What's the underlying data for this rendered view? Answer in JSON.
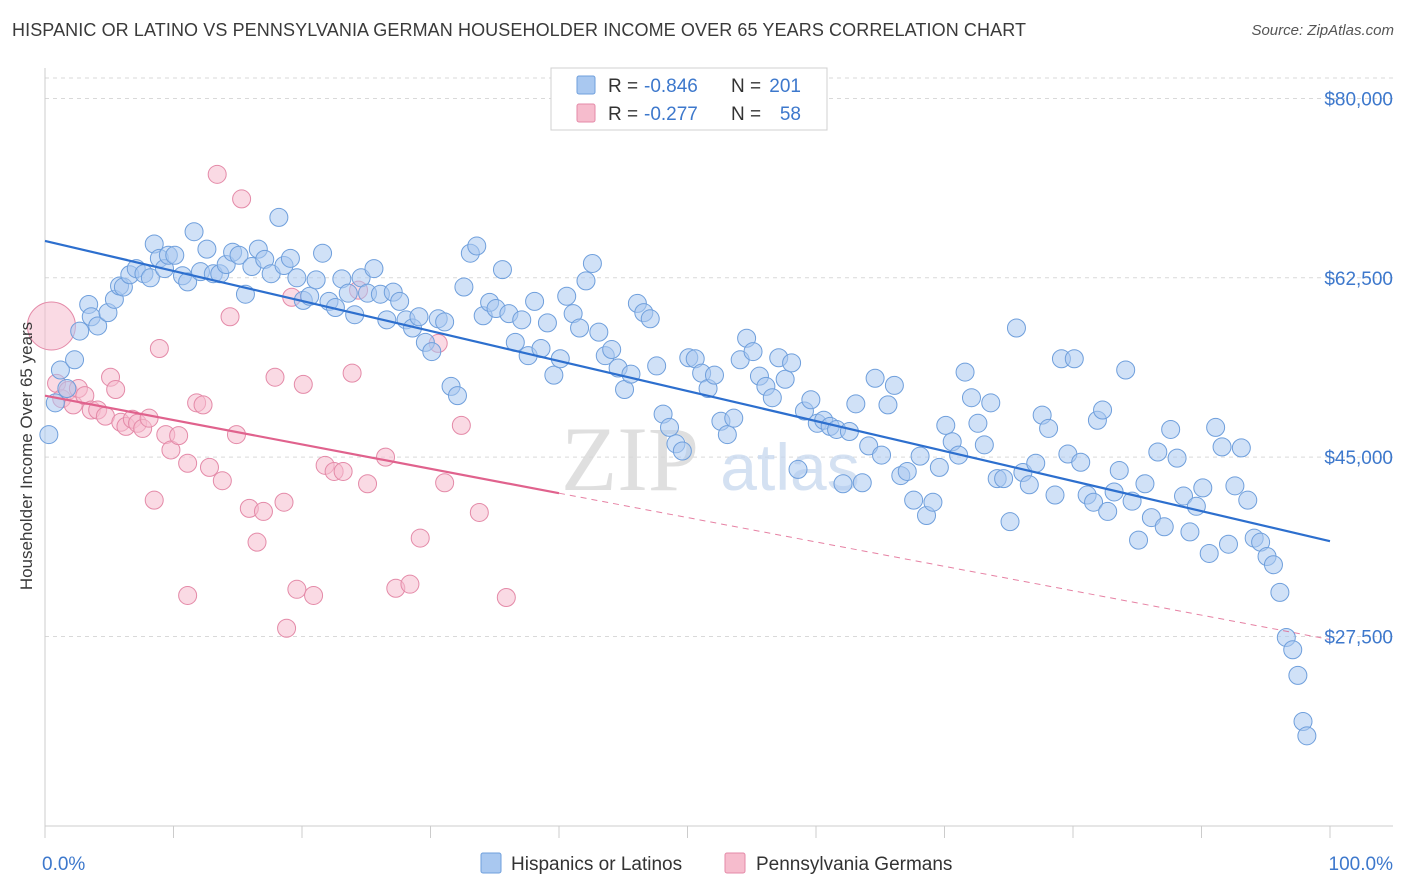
{
  "title": "HISPANIC OR LATINO VS PENNSYLVANIA GERMAN HOUSEHOLDER INCOME OVER 65 YEARS CORRELATION CHART",
  "source": "Source: ZipAtlas.com",
  "watermark": {
    "zip": "ZIP",
    "atlas": "atlas"
  },
  "colors": {
    "blue_fill": "#a9c8f0",
    "blue_stroke": "#6f9fdc",
    "blue_line": "#2d6fce",
    "pink_fill": "#f6bccd",
    "pink_stroke": "#e48aa8",
    "pink_line": "#e0628d",
    "axis_text": "#3d78cc",
    "grid": "#d9d9d9"
  },
  "legend_box": {
    "rows": [
      {
        "r_label": "R =",
        "r_value": "-0.846",
        "n_label": "N =",
        "n_value": "201",
        "color": "blue"
      },
      {
        "r_label": "R =",
        "r_value": "-0.277",
        "n_label": "N =",
        "n_value": "58",
        "color": "pink"
      }
    ]
  },
  "chart_data": {
    "type": "scatter",
    "title": "HISPANIC OR LATINO VS PENNSYLVANIA GERMAN HOUSEHOLDER INCOME OVER 65 YEARS CORRELATION CHART",
    "xlabel": "",
    "ylabel": "Householder Income Over 65 years",
    "x_tick_labels": [
      "0.0%",
      "100.0%"
    ],
    "y_tick_labels": [
      "$80,000",
      "$62,500",
      "$45,000",
      "$27,500"
    ],
    "y_ticks": [
      80000,
      62500,
      45000,
      27500
    ],
    "xlim": [
      0,
      100
    ],
    "ylim": [
      9000,
      82000
    ],
    "grid": true,
    "legend_position": "bottom-center",
    "series": [
      {
        "name": "Hispanics or Latinos",
        "color": "blue",
        "trend": {
          "x0": 0,
          "y0": 66100,
          "x1": 100,
          "y1": 36800,
          "dashed_until": 100
        },
        "points": [
          [
            0.3,
            47200
          ],
          [
            0.8,
            50300
          ],
          [
            1.2,
            53500
          ],
          [
            1.7,
            51700
          ],
          [
            2.3,
            54500
          ],
          [
            2.7,
            57300
          ],
          [
            3.4,
            59900
          ],
          [
            3.6,
            58700
          ],
          [
            4.1,
            57800
          ],
          [
            4.9,
            59100
          ],
          [
            5.4,
            60400
          ],
          [
            5.8,
            61700
          ],
          [
            6.1,
            61600
          ],
          [
            6.6,
            62800
          ],
          [
            7.1,
            63400
          ],
          [
            7.7,
            62900
          ],
          [
            8.2,
            62500
          ],
          [
            8.5,
            65800
          ],
          [
            8.9,
            64400
          ],
          [
            9.3,
            63400
          ],
          [
            9.6,
            64700
          ],
          [
            10.1,
            64700
          ],
          [
            10.7,
            62700
          ],
          [
            11.1,
            62100
          ],
          [
            11.6,
            67000
          ],
          [
            12.1,
            63100
          ],
          [
            12.6,
            65300
          ],
          [
            13.1,
            62900
          ],
          [
            13.6,
            62900
          ],
          [
            14.1,
            63800
          ],
          [
            14.6,
            65000
          ],
          [
            15.1,
            64700
          ],
          [
            15.6,
            60900
          ],
          [
            16.1,
            63600
          ],
          [
            16.6,
            65300
          ],
          [
            17.1,
            64300
          ],
          [
            17.6,
            62900
          ],
          [
            18.2,
            68400
          ],
          [
            18.6,
            63700
          ],
          [
            19.1,
            64400
          ],
          [
            19.6,
            62500
          ],
          [
            20.1,
            60300
          ],
          [
            20.6,
            60700
          ],
          [
            21.1,
            62300
          ],
          [
            21.6,
            64900
          ],
          [
            22.1,
            60200
          ],
          [
            22.6,
            59600
          ],
          [
            23.1,
            62400
          ],
          [
            23.6,
            61000
          ],
          [
            24.1,
            58900
          ],
          [
            24.6,
            62500
          ],
          [
            25.1,
            61000
          ],
          [
            25.6,
            63400
          ],
          [
            26.1,
            60900
          ],
          [
            26.6,
            58400
          ],
          [
            27.1,
            61100
          ],
          [
            27.6,
            60200
          ],
          [
            28.1,
            58400
          ],
          [
            28.6,
            57600
          ],
          [
            29.1,
            58700
          ],
          [
            29.6,
            56200
          ],
          [
            30.1,
            55300
          ],
          [
            30.6,
            58500
          ],
          [
            31.1,
            58200
          ],
          [
            31.6,
            51900
          ],
          [
            32.1,
            51000
          ],
          [
            32.6,
            61600
          ],
          [
            33.1,
            64900
          ],
          [
            33.6,
            65600
          ],
          [
            34.1,
            58800
          ],
          [
            34.6,
            60100
          ],
          [
            35.1,
            59500
          ],
          [
            35.6,
            63300
          ],
          [
            36.1,
            59000
          ],
          [
            36.6,
            56200
          ],
          [
            37.1,
            58400
          ],
          [
            37.6,
            54900
          ],
          [
            38.1,
            60200
          ],
          [
            38.6,
            55600
          ],
          [
            39.1,
            58100
          ],
          [
            39.6,
            53000
          ],
          [
            40.1,
            54600
          ],
          [
            40.6,
            60700
          ],
          [
            41.1,
            59000
          ],
          [
            41.6,
            57600
          ],
          [
            42.1,
            62200
          ],
          [
            42.6,
            63900
          ],
          [
            43.1,
            57200
          ],
          [
            43.6,
            54900
          ],
          [
            44.1,
            55500
          ],
          [
            44.6,
            53700
          ],
          [
            45.1,
            51600
          ],
          [
            45.6,
            53100
          ],
          [
            46.1,
            60000
          ],
          [
            46.6,
            59100
          ],
          [
            47.1,
            58500
          ],
          [
            47.6,
            53900
          ],
          [
            48.1,
            49200
          ],
          [
            48.6,
            47900
          ],
          [
            49.1,
            46300
          ],
          [
            49.6,
            45600
          ],
          [
            50.1,
            54700
          ],
          [
            50.6,
            54600
          ],
          [
            51.1,
            53200
          ],
          [
            51.6,
            51700
          ],
          [
            52.1,
            53000
          ],
          [
            52.6,
            48500
          ],
          [
            53.1,
            47200
          ],
          [
            53.6,
            48800
          ],
          [
            54.1,
            54500
          ],
          [
            54.6,
            56600
          ],
          [
            55.1,
            55300
          ],
          [
            55.6,
            52900
          ],
          [
            56.1,
            51900
          ],
          [
            56.6,
            50800
          ],
          [
            57.1,
            54700
          ],
          [
            57.6,
            52600
          ],
          [
            58.1,
            54200
          ],
          [
            58.6,
            43800
          ],
          [
            59.1,
            49500
          ],
          [
            59.6,
            50600
          ],
          [
            60.1,
            48300
          ],
          [
            60.6,
            48600
          ],
          [
            61.1,
            48000
          ],
          [
            61.6,
            47700
          ],
          [
            62.1,
            42400
          ],
          [
            62.6,
            47500
          ],
          [
            63.1,
            50200
          ],
          [
            63.6,
            42500
          ],
          [
            64.1,
            46100
          ],
          [
            64.6,
            52700
          ],
          [
            65.1,
            45200
          ],
          [
            65.6,
            50100
          ],
          [
            66.1,
            52000
          ],
          [
            66.6,
            43200
          ],
          [
            67.1,
            43600
          ],
          [
            67.6,
            40800
          ],
          [
            68.1,
            45100
          ],
          [
            68.6,
            39300
          ],
          [
            69.1,
            40600
          ],
          [
            69.6,
            44000
          ],
          [
            70.1,
            48100
          ],
          [
            70.6,
            46500
          ],
          [
            71.1,
            45200
          ],
          [
            71.6,
            53300
          ],
          [
            72.1,
            50800
          ],
          [
            72.6,
            48300
          ],
          [
            73.1,
            46200
          ],
          [
            73.6,
            50300
          ],
          [
            74.1,
            42900
          ],
          [
            74.6,
            42900
          ],
          [
            75.1,
            38700
          ],
          [
            75.6,
            57600
          ],
          [
            76.1,
            43500
          ],
          [
            76.6,
            42300
          ],
          [
            77.1,
            44400
          ],
          [
            77.6,
            49100
          ],
          [
            78.1,
            47800
          ],
          [
            78.6,
            41300
          ],
          [
            79.1,
            54600
          ],
          [
            79.6,
            45300
          ],
          [
            80.1,
            54600
          ],
          [
            80.6,
            44500
          ],
          [
            81.1,
            41300
          ],
          [
            81.6,
            40600
          ],
          [
            81.9,
            48600
          ],
          [
            82.3,
            49600
          ],
          [
            82.7,
            39700
          ],
          [
            83.2,
            41600
          ],
          [
            83.6,
            43700
          ],
          [
            84.1,
            53500
          ],
          [
            84.6,
            40700
          ],
          [
            85.1,
            36900
          ],
          [
            85.6,
            42400
          ],
          [
            86.1,
            39100
          ],
          [
            86.6,
            45500
          ],
          [
            87.1,
            38200
          ],
          [
            87.6,
            47700
          ],
          [
            88.1,
            44900
          ],
          [
            88.6,
            41200
          ],
          [
            89.1,
            37700
          ],
          [
            89.6,
            40200
          ],
          [
            90.1,
            42000
          ],
          [
            90.6,
            35600
          ],
          [
            91.1,
            47900
          ],
          [
            91.6,
            46000
          ],
          [
            92.1,
            36500
          ],
          [
            92.6,
            42200
          ],
          [
            93.1,
            45900
          ],
          [
            93.6,
            40800
          ],
          [
            94.1,
            37100
          ],
          [
            94.6,
            36700
          ],
          [
            95.1,
            35300
          ],
          [
            95.6,
            34500
          ],
          [
            96.1,
            31800
          ],
          [
            96.6,
            27400
          ],
          [
            97.1,
            26200
          ],
          [
            97.5,
            23700
          ],
          [
            97.9,
            19200
          ],
          [
            98.2,
            17800
          ]
        ]
      },
      {
        "name": "Pennsylvania Germans",
        "color": "pink",
        "trend": {
          "x0": 0,
          "y0": 51000,
          "x1": 100,
          "y1": 27200,
          "solid_until": 40
        },
        "points": [
          [
            0.5,
            57800
          ],
          [
            0.9,
            52200
          ],
          [
            1.3,
            50700
          ],
          [
            1.8,
            51500
          ],
          [
            2.2,
            50100
          ],
          [
            2.6,
            51700
          ],
          [
            3.1,
            51000
          ],
          [
            3.6,
            49600
          ],
          [
            4.1,
            49600
          ],
          [
            4.7,
            49000
          ],
          [
            5.1,
            52800
          ],
          [
            5.5,
            51600
          ],
          [
            5.9,
            48400
          ],
          [
            6.3,
            48000
          ],
          [
            6.8,
            48700
          ],
          [
            7.2,
            48300
          ],
          [
            7.6,
            47800
          ],
          [
            8.1,
            48800
          ],
          [
            8.5,
            40800
          ],
          [
            8.9,
            55600
          ],
          [
            9.4,
            47200
          ],
          [
            9.8,
            45700
          ],
          [
            10.4,
            47100
          ],
          [
            11.1,
            44400
          ],
          [
            11.1,
            31500
          ],
          [
            11.8,
            50300
          ],
          [
            12.3,
            50100
          ],
          [
            12.8,
            44000
          ],
          [
            13.4,
            72600
          ],
          [
            13.8,
            42700
          ],
          [
            14.4,
            58700
          ],
          [
            14.9,
            47200
          ],
          [
            15.3,
            70200
          ],
          [
            15.9,
            40000
          ],
          [
            16.5,
            36700
          ],
          [
            17.0,
            39700
          ],
          [
            17.9,
            52800
          ],
          [
            18.6,
            40600
          ],
          [
            18.8,
            28300
          ],
          [
            19.2,
            60600
          ],
          [
            19.6,
            32100
          ],
          [
            20.1,
            52100
          ],
          [
            20.9,
            31500
          ],
          [
            21.8,
            44200
          ],
          [
            22.5,
            43600
          ],
          [
            23.2,
            43600
          ],
          [
            23.9,
            53200
          ],
          [
            24.4,
            61300
          ],
          [
            25.1,
            42400
          ],
          [
            26.5,
            45000
          ],
          [
            27.3,
            32200
          ],
          [
            28.4,
            32600
          ],
          [
            29.2,
            37100
          ],
          [
            30.6,
            56100
          ],
          [
            31.1,
            42500
          ],
          [
            32.4,
            48100
          ],
          [
            33.8,
            39600
          ],
          [
            35.9,
            31300
          ]
        ]
      }
    ]
  },
  "legend": {
    "items": [
      {
        "label": "Hispanics or Latinos",
        "color": "blue"
      },
      {
        "label": "Pennsylvania Germans",
        "color": "pink"
      }
    ]
  }
}
